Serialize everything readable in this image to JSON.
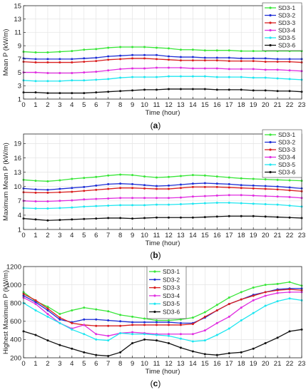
{
  "series_colors": [
    "#39e639",
    "#1f2fd6",
    "#d91f1f",
    "#e02ee0",
    "#1fe6f0",
    "#111111"
  ],
  "chart_data": [
    {
      "type": "line",
      "panel_label": "(a)",
      "xlabel": "Time (hour)",
      "ylabel": "Mean P (kW/m)",
      "xlim": [
        0,
        23
      ],
      "ylim": [
        1,
        15
      ],
      "yticks": [
        1,
        3,
        5,
        7,
        9,
        11,
        13,
        15
      ],
      "grid": true,
      "legend": "top-right",
      "x": [
        0,
        1,
        2,
        3,
        4,
        5,
        6,
        7,
        8,
        9,
        10,
        11,
        12,
        13,
        14,
        15,
        16,
        17,
        18,
        19,
        20,
        21,
        22,
        23
      ],
      "series": [
        {
          "name": "SD3-1",
          "values": [
            8.1,
            8.0,
            8.0,
            8.1,
            8.2,
            8.4,
            8.5,
            8.7,
            8.8,
            8.8,
            8.8,
            8.7,
            8.6,
            8.4,
            8.4,
            8.3,
            8.3,
            8.3,
            8.2,
            8.2,
            8.2,
            8.2,
            8.2,
            8.2
          ]
        },
        {
          "name": "SD3-2",
          "values": [
            7.1,
            7.0,
            7.0,
            7.0,
            7.0,
            7.1,
            7.2,
            7.4,
            7.5,
            7.6,
            7.6,
            7.6,
            7.4,
            7.3,
            7.3,
            7.2,
            7.2,
            7.2,
            7.1,
            7.1,
            7.1,
            7.0,
            7.0,
            7.0
          ]
        },
        {
          "name": "SD3-3",
          "values": [
            6.6,
            6.5,
            6.5,
            6.5,
            6.5,
            6.6,
            6.7,
            6.9,
            7.0,
            7.1,
            7.1,
            7.0,
            6.9,
            6.8,
            6.8,
            6.8,
            6.8,
            6.7,
            6.7,
            6.7,
            6.6,
            6.6,
            6.6,
            6.5
          ]
        },
        {
          "name": "SD3-4",
          "values": [
            5.0,
            5.0,
            4.9,
            4.9,
            4.9,
            5.0,
            5.1,
            5.3,
            5.5,
            5.6,
            5.6,
            5.7,
            5.7,
            5.7,
            5.6,
            5.6,
            5.6,
            5.5,
            5.5,
            5.5,
            5.4,
            5.4,
            5.3,
            5.2
          ]
        },
        {
          "name": "SD3-5",
          "values": [
            3.8,
            3.7,
            3.7,
            3.7,
            3.8,
            3.8,
            3.9,
            4.0,
            4.2,
            4.3,
            4.3,
            4.3,
            4.4,
            4.4,
            4.4,
            4.4,
            4.3,
            4.3,
            4.3,
            4.2,
            4.2,
            4.1,
            4.0,
            3.9
          ]
        },
        {
          "name": "SD3-6",
          "values": [
            2.0,
            2.0,
            1.9,
            1.9,
            1.9,
            1.9,
            2.0,
            2.1,
            2.2,
            2.3,
            2.4,
            2.4,
            2.5,
            2.5,
            2.5,
            2.5,
            2.4,
            2.4,
            2.4,
            2.3,
            2.3,
            2.2,
            2.2,
            2.1
          ]
        }
      ]
    },
    {
      "type": "line",
      "panel_label": "(b)",
      "xlabel": "Time (hour)",
      "ylabel": "Maximum Mean P (kW/m)",
      "xlim": [
        0,
        23
      ],
      "ylim": [
        1,
        21
      ],
      "yticks": [
        1,
        4,
        7,
        10,
        13,
        16,
        19
      ],
      "grid": true,
      "legend": "top-right",
      "x": [
        0,
        1,
        2,
        3,
        4,
        5,
        6,
        7,
        8,
        9,
        10,
        11,
        12,
        13,
        14,
        15,
        16,
        17,
        18,
        19,
        20,
        21,
        22,
        23
      ],
      "series": [
        {
          "name": "SD3-1",
          "values": [
            11.4,
            11.2,
            11.1,
            11.3,
            11.6,
            11.8,
            12.0,
            12.3,
            12.5,
            12.4,
            12.1,
            11.9,
            12.0,
            12.2,
            12.4,
            12.3,
            12.1,
            11.9,
            11.7,
            11.6,
            11.5,
            11.4,
            11.3,
            11.2
          ]
        },
        {
          "name": "SD3-2",
          "values": [
            9.6,
            9.4,
            9.3,
            9.5,
            9.7,
            9.9,
            10.2,
            10.5,
            10.6,
            10.5,
            10.3,
            10.1,
            10.2,
            10.4,
            10.6,
            10.7,
            10.6,
            10.5,
            10.3,
            10.2,
            10.1,
            10.0,
            9.8,
            9.6
          ]
        },
        {
          "name": "SD3-3",
          "values": [
            8.8,
            8.7,
            8.7,
            8.8,
            8.9,
            9.1,
            9.3,
            9.5,
            9.7,
            9.7,
            9.6,
            9.5,
            9.5,
            9.7,
            9.9,
            9.9,
            9.9,
            9.8,
            9.7,
            9.6,
            9.5,
            9.4,
            9.2,
            9.0
          ]
        },
        {
          "name": "SD3-4",
          "values": [
            7.0,
            6.9,
            6.9,
            7.0,
            7.1,
            7.3,
            7.4,
            7.5,
            7.6,
            7.6,
            7.6,
            7.6,
            7.6,
            7.7,
            7.9,
            8.0,
            8.1,
            8.2,
            8.2,
            8.1,
            8.0,
            7.9,
            7.8,
            7.6
          ]
        },
        {
          "name": "SD3-5",
          "values": [
            5.5,
            5.4,
            5.4,
            5.5,
            5.6,
            5.8,
            5.9,
            6.0,
            6.1,
            6.1,
            6.1,
            6.2,
            6.2,
            6.3,
            6.4,
            6.5,
            6.6,
            6.6,
            6.5,
            6.4,
            6.3,
            6.2,
            6.0,
            5.8
          ]
        },
        {
          "name": "SD3-6",
          "values": [
            3.3,
            3.1,
            2.9,
            3.0,
            3.1,
            3.2,
            3.3,
            3.4,
            3.4,
            3.3,
            3.4,
            3.5,
            3.5,
            3.5,
            3.5,
            3.6,
            3.7,
            3.8,
            3.8,
            3.8,
            3.7,
            3.6,
            3.5,
            3.4
          ]
        }
      ]
    },
    {
      "type": "line",
      "panel_label": "(c)",
      "xlabel": "Time (hour)",
      "ylabel": "Highest Maximum P (kW/m)",
      "xlim": [
        0,
        23
      ],
      "ylim": [
        200,
        1200
      ],
      "yticks": [
        200,
        400,
        600,
        800,
        1000,
        1200
      ],
      "grid": true,
      "legend": "top-center",
      "x": [
        0,
        1,
        2,
        3,
        4,
        5,
        6,
        7,
        8,
        9,
        10,
        11,
        12,
        13,
        14,
        15,
        16,
        17,
        18,
        19,
        20,
        21,
        22,
        23
      ],
      "series": [
        {
          "name": "SD3-1",
          "values": [
            920,
            820,
            760,
            680,
            720,
            750,
            730,
            710,
            670,
            650,
            630,
            610,
            610,
            620,
            640,
            700,
            780,
            860,
            920,
            970,
            1000,
            1010,
            1030,
            990
          ]
        },
        {
          "name": "SD3-2",
          "values": [
            880,
            810,
            720,
            620,
            590,
            620,
            620,
            610,
            600,
            590,
            590,
            590,
            590,
            580,
            580,
            640,
            720,
            790,
            840,
            890,
            920,
            950,
            960,
            960
          ]
        },
        {
          "name": "SD3-3",
          "values": [
            900,
            830,
            740,
            640,
            580,
            560,
            550,
            550,
            550,
            560,
            560,
            560,
            560,
            560,
            570,
            650,
            720,
            790,
            840,
            880,
            920,
            940,
            950,
            940
          ]
        },
        {
          "name": "SD3-4",
          "values": [
            860,
            790,
            680,
            580,
            520,
            560,
            460,
            440,
            470,
            480,
            470,
            460,
            460,
            460,
            460,
            500,
            580,
            650,
            750,
            830,
            880,
            910,
            920,
            920
          ]
        },
        {
          "name": "SD3-5",
          "values": [
            800,
            720,
            650,
            580,
            510,
            460,
            400,
            390,
            470,
            460,
            460,
            450,
            440,
            410,
            380,
            390,
            450,
            520,
            610,
            690,
            770,
            820,
            850,
            830
          ]
        },
        {
          "name": "SD3-6",
          "values": [
            490,
            450,
            390,
            340,
            300,
            260,
            230,
            220,
            260,
            360,
            400,
            390,
            360,
            310,
            270,
            240,
            230,
            250,
            260,
            300,
            360,
            420,
            490,
            510
          ]
        }
      ]
    }
  ]
}
